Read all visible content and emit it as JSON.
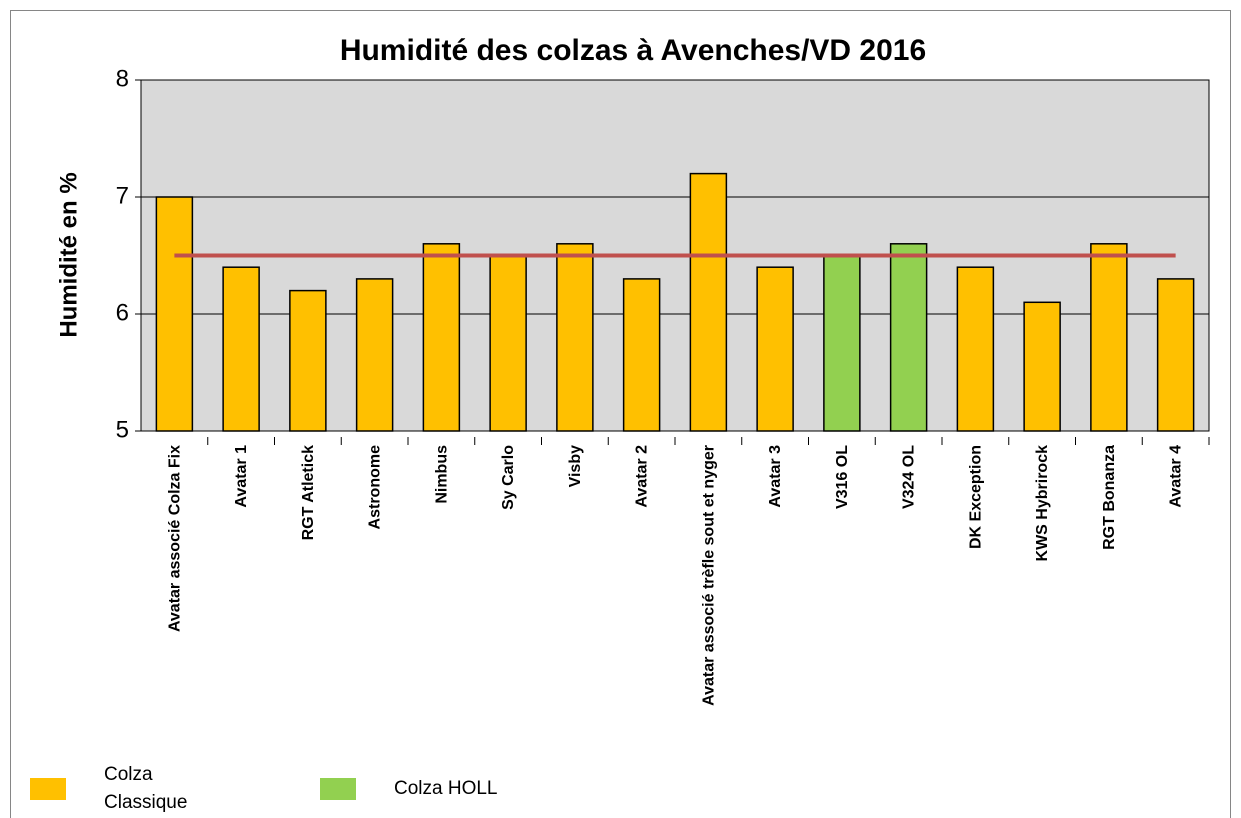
{
  "chart_data": {
    "type": "bar",
    "title": "Humidité des colzas à Avenches/VD 2016",
    "y_label": "Humidité en %",
    "categories": [
      "Avatar associé Colza Fix",
      "Avatar 1",
      "RGT Atletick",
      "Astronome",
      "Nimbus",
      "Sy Carlo",
      "Visby",
      "Avatar 2",
      "Avatar associé trèfle sout et nyger",
      "Avatar 3",
      "V316 OL",
      "V324 OL",
      "DK Exception",
      "KWS Hybrirock",
      "RGT Bonanza",
      "Avatar 4"
    ],
    "series": [
      {
        "name": "Colza Classique",
        "color": "#ffc000",
        "values": [
          7.0,
          6.4,
          6.2,
          6.3,
          6.6,
          6.5,
          6.6,
          6.3,
          7.2,
          6.4,
          null,
          null,
          6.4,
          6.1,
          6.6,
          6.3
        ]
      },
      {
        "name": "Colza HOLL",
        "color": "#92d050",
        "values": [
          null,
          null,
          null,
          null,
          null,
          null,
          null,
          null,
          null,
          null,
          6.5,
          6.6,
          null,
          null,
          null,
          null
        ]
      }
    ],
    "reference_line": {
      "value": 6.5,
      "color": "#c0504d"
    },
    "ylim": [
      5,
      8
    ],
    "yticks": [
      5,
      6,
      7,
      8
    ],
    "grid": true,
    "legend": "bottom"
  }
}
